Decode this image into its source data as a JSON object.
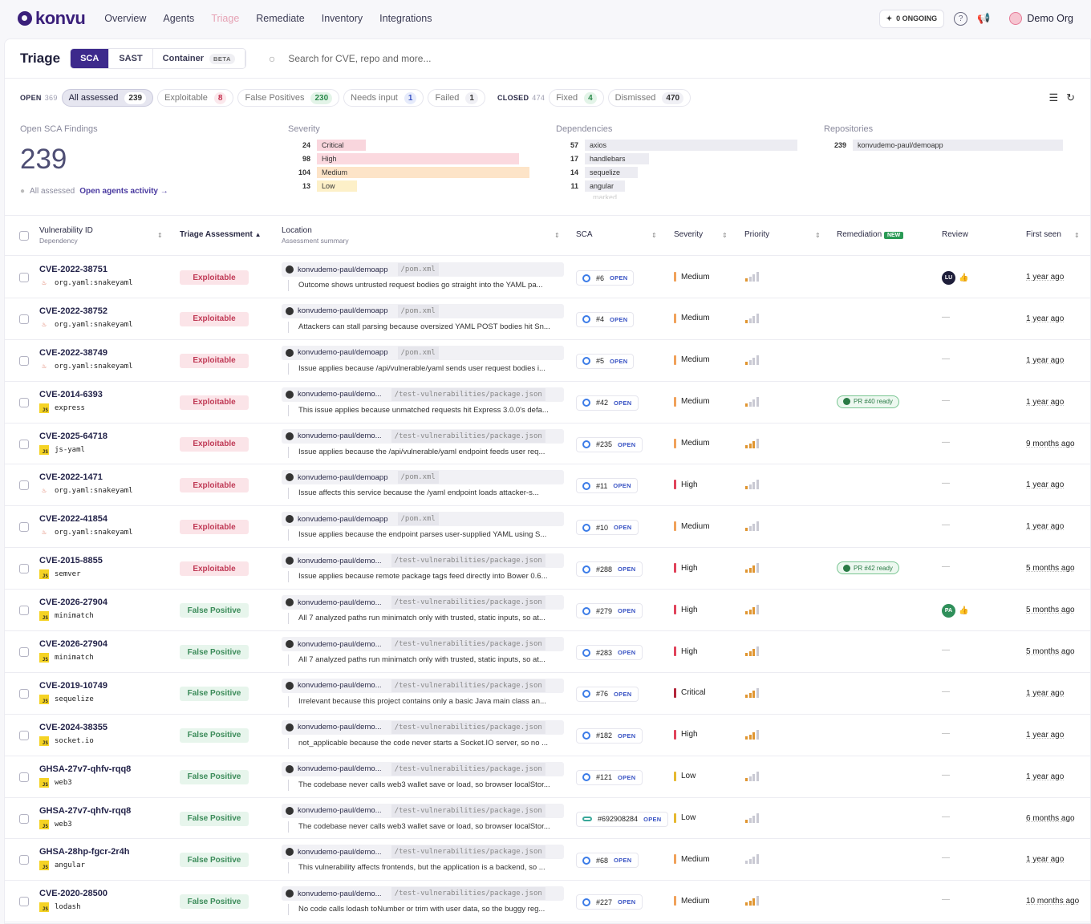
{
  "nav": {
    "brand": "konvu",
    "links": [
      "Overview",
      "Agents",
      "Triage",
      "Remediate",
      "Inventory",
      "Integrations"
    ],
    "active": "Triage",
    "ongoing": "0 ONGOING",
    "org": "Demo Org"
  },
  "header": {
    "title": "Triage",
    "tabs": [
      "SCA",
      "SAST",
      "Container"
    ],
    "beta": "BETA",
    "search_placeholder": "Search for CVE, repo and more..."
  },
  "filters": {
    "open_label": "OPEN",
    "open_count": "369",
    "closed_label": "CLOSED",
    "closed_count": "474",
    "open_pills": [
      {
        "label": "All assessed",
        "count": "239",
        "tone": ""
      },
      {
        "label": "Exploitable",
        "count": "8",
        "tone": "red"
      },
      {
        "label": "False Positives",
        "count": "230",
        "tone": "grn"
      },
      {
        "label": "Needs input",
        "count": "1",
        "tone": "blu"
      },
      {
        "label": "Failed",
        "count": "1",
        "tone": ""
      }
    ],
    "closed_pills": [
      {
        "label": "Fixed",
        "count": "4",
        "tone": "grn"
      },
      {
        "label": "Dismissed",
        "count": "470",
        "tone": ""
      }
    ]
  },
  "stats": {
    "findings_title": "Open SCA Findings",
    "findings_count": "239",
    "all_assessed": "All assessed",
    "agents_link": "Open agents activity →",
    "severity_title": "Severity",
    "severity": [
      {
        "n": "24",
        "label": "Critical",
        "color": "#f9d6dd",
        "frac": 0.23
      },
      {
        "n": "98",
        "label": "High",
        "color": "#fbd9df",
        "frac": 0.95
      },
      {
        "n": "104",
        "label": "Medium",
        "color": "#fde4c8",
        "frac": 1.0
      },
      {
        "n": "13",
        "label": "Low",
        "color": "#fdf0c8",
        "frac": 0.13
      }
    ],
    "deps_title": "Dependencies",
    "deps": [
      {
        "n": "57",
        "label": "axios",
        "frac": 1.0
      },
      {
        "n": "17",
        "label": "handlebars",
        "frac": 0.3
      },
      {
        "n": "14",
        "label": "sequelize",
        "frac": 0.25
      },
      {
        "n": "11",
        "label": "angular",
        "frac": 0.19
      }
    ],
    "deps_more": "marked",
    "repos_title": "Repositories",
    "repos": [
      {
        "n": "239",
        "label": "konvudemo-paul/demoapp",
        "frac": 1.0
      }
    ]
  },
  "columns": {
    "vid": "Vulnerability ID",
    "vid_sub": "Dependency",
    "triage": "Triage Assessment",
    "loc": "Location",
    "loc_sub": "Assessment summary",
    "sca": "SCA",
    "severity": "Severity",
    "priority": "Priority",
    "remediation": "Remediation",
    "new_badge": "NEW",
    "review": "Review",
    "first_seen": "First seen"
  },
  "rows": [
    {
      "id": "CVE-2022-38751",
      "dep": "org.yaml:snakeyaml",
      "lang": "java",
      "assess": "Exploitable",
      "repo": "konvudemo-paul/demoapp",
      "path": "/pom.xml",
      "summary": "Outcome shows untrusted request bodies go straight into the YAML pa...",
      "sca": "#6",
      "open": "OPEN",
      "sev": "Medium",
      "prio": 1,
      "rem": "",
      "review": "LU",
      "rcolor": "#1e1e3a",
      "seen": "1 year ago"
    },
    {
      "id": "CVE-2022-38752",
      "dep": "org.yaml:snakeyaml",
      "lang": "java",
      "assess": "Exploitable",
      "repo": "konvudemo-paul/demoapp",
      "path": "/pom.xml",
      "summary": "Attackers can stall parsing because oversized YAML POST bodies hit Sn...",
      "sca": "#4",
      "open": "OPEN",
      "sev": "Medium",
      "prio": 1,
      "rem": "",
      "review": "",
      "rcolor": "",
      "seen": "1 year ago"
    },
    {
      "id": "CVE-2022-38749",
      "dep": "org.yaml:snakeyaml",
      "lang": "java",
      "assess": "Exploitable",
      "repo": "konvudemo-paul/demoapp",
      "path": "/pom.xml",
      "summary": "Issue applies because /api/vulnerable/yaml sends user request bodies i...",
      "sca": "#5",
      "open": "OPEN",
      "sev": "Medium",
      "prio": 1,
      "rem": "",
      "review": "",
      "rcolor": "",
      "seen": "1 year ago"
    },
    {
      "id": "CVE-2014-6393",
      "dep": "express",
      "lang": "js",
      "assess": "Exploitable",
      "repo": "konvudemo-paul/demo...",
      "path": "/test-vulnerabilities/package.json",
      "summary": "This issue applies because unmatched requests hit Express 3.0.0's defa...",
      "sca": "#42",
      "open": "OPEN",
      "sev": "Medium",
      "prio": 1,
      "rem": "PR #40 ready",
      "review": "",
      "rcolor": "",
      "seen": "1 year ago"
    },
    {
      "id": "CVE-2025-64718",
      "dep": "js-yaml",
      "lang": "js",
      "assess": "Exploitable",
      "repo": "konvudemo-paul/demo...",
      "path": "/test-vulnerabilities/package.json",
      "summary": "Issue applies because the /api/vulnerable/yaml endpoint feeds user req...",
      "sca": "#235",
      "open": "OPEN",
      "sev": "Medium",
      "prio": 3,
      "rem": "",
      "review": "",
      "rcolor": "",
      "seen": "9 months ago"
    },
    {
      "id": "CVE-2022-1471",
      "dep": "org.yaml:snakeyaml",
      "lang": "java",
      "assess": "Exploitable",
      "repo": "konvudemo-paul/demoapp",
      "path": "/pom.xml",
      "summary": "Issue affects this service because the /yaml endpoint loads attacker-s...",
      "sca": "#11",
      "open": "OPEN",
      "sev": "High",
      "prio": 1,
      "rem": "",
      "review": "",
      "rcolor": "",
      "seen": "1 year ago"
    },
    {
      "id": "CVE-2022-41854",
      "dep": "org.yaml:snakeyaml",
      "lang": "java",
      "assess": "Exploitable",
      "repo": "konvudemo-paul/demoapp",
      "path": "/pom.xml",
      "summary": "Issue applies because the endpoint parses user-supplied YAML using S...",
      "sca": "#10",
      "open": "OPEN",
      "sev": "Medium",
      "prio": 1,
      "rem": "",
      "review": "",
      "rcolor": "",
      "seen": "1 year ago"
    },
    {
      "id": "CVE-2015-8855",
      "dep": "semver",
      "lang": "js",
      "assess": "Exploitable",
      "repo": "konvudemo-paul/demo...",
      "path": "/test-vulnerabilities/package.json",
      "summary": "Issue applies because remote package tags feed directly into Bower 0.6...",
      "sca": "#288",
      "open": "OPEN",
      "sev": "High",
      "prio": 3,
      "rem": "PR #42 ready",
      "review": "",
      "rcolor": "",
      "seen": "5 months ago"
    },
    {
      "id": "CVE-2026-27904",
      "dep": "minimatch",
      "lang": "js",
      "assess": "False Positive",
      "repo": "konvudemo-paul/demo...",
      "path": "/test-vulnerabilities/package.json",
      "summary": "All 7 analyzed paths run minimatch only with trusted, static inputs, so at...",
      "sca": "#279",
      "open": "OPEN",
      "sev": "High",
      "prio": 3,
      "rem": "",
      "review": "PA",
      "rcolor": "#2f8f5a",
      "seen": "5 months ago"
    },
    {
      "id": "CVE-2026-27904",
      "dep": "minimatch",
      "lang": "js",
      "assess": "False Positive",
      "repo": "konvudemo-paul/demo...",
      "path": "/test-vulnerabilities/package.json",
      "summary": "All 7 analyzed paths run minimatch only with trusted, static inputs, so at...",
      "sca": "#283",
      "open": "OPEN",
      "sev": "High",
      "prio": 3,
      "rem": "",
      "review": "",
      "rcolor": "",
      "seen": "5 months ago"
    },
    {
      "id": "CVE-2019-10749",
      "dep": "sequelize",
      "lang": "js",
      "assess": "False Positive",
      "repo": "konvudemo-paul/demo...",
      "path": "/test-vulnerabilities/package.json",
      "summary": "Irrelevant because this project contains only a basic Java main class an...",
      "sca": "#76",
      "open": "OPEN",
      "sev": "Critical",
      "prio": 3,
      "rem": "",
      "review": "",
      "rcolor": "",
      "seen": "1 year ago"
    },
    {
      "id": "CVE-2024-38355",
      "dep": "socket.io",
      "lang": "js",
      "assess": "False Positive",
      "repo": "konvudemo-paul/demo...",
      "path": "/test-vulnerabilities/package.json",
      "summary": "not_applicable because the code never starts a Socket.IO server, so no ...",
      "sca": "#182",
      "open": "OPEN",
      "sev": "High",
      "prio": 3,
      "rem": "",
      "review": "",
      "rcolor": "",
      "seen": "1 year ago"
    },
    {
      "id": "GHSA-27v7-qhfv-rqq8",
      "dep": "web3",
      "lang": "js",
      "assess": "False Positive",
      "repo": "konvudemo-paul/demo...",
      "path": "/test-vulnerabilities/package.json",
      "summary": "The codebase never calls web3 wallet save or load, so browser localStor...",
      "sca": "#121",
      "open": "OPEN",
      "sev": "Low",
      "prio": 1,
      "rem": "",
      "review": "",
      "rcolor": "",
      "seen": "1 year ago"
    },
    {
      "id": "GHSA-27v7-qhfv-rqq8",
      "dep": "web3",
      "lang": "js",
      "assess": "False Positive",
      "repo": "konvudemo-paul/demo...",
      "path": "/test-vulnerabilities/package.json",
      "summary": "The codebase never calls web3 wallet save or load, so browser localStor...",
      "sca": "#692908284",
      "open": "OPEN",
      "sev": "Low",
      "prio": 1,
      "rem": "",
      "review": "",
      "rcolor": "",
      "seen": "6 months ago"
    },
    {
      "id": "GHSA-28hp-fgcr-2r4h",
      "dep": "angular",
      "lang": "js",
      "assess": "False Positive",
      "repo": "konvudemo-paul/demo...",
      "path": "/test-vulnerabilities/package.json",
      "summary": "This vulnerability affects frontends, but the application is a backend, so ...",
      "sca": "#68",
      "open": "OPEN",
      "sev": "Medium",
      "prio": 0,
      "rem": "",
      "review": "",
      "rcolor": "",
      "seen": "1 year ago"
    },
    {
      "id": "CVE-2020-28500",
      "dep": "lodash",
      "lang": "js",
      "assess": "False Positive",
      "repo": "konvudemo-paul/demo...",
      "path": "/test-vulnerabilities/package.json",
      "summary": "No code calls lodash toNumber or trim with user data, so the buggy reg...",
      "sca": "#227",
      "open": "OPEN",
      "sev": "Medium",
      "prio": 3,
      "rem": "",
      "review": "",
      "rcolor": "",
      "seen": "10 months ago"
    }
  ],
  "sev_colors": {
    "Critical": "#b3263b",
    "High": "#e0435a",
    "Medium": "#f0a15a",
    "Low": "#e6b830"
  }
}
